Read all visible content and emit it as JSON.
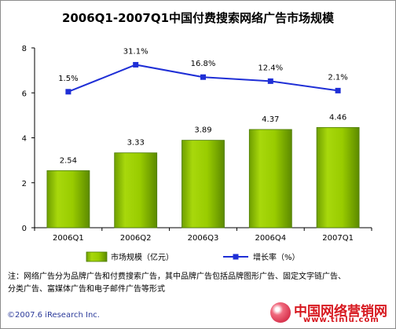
{
  "title": "2006Q1-2007Q1中国付费搜索网络广告市场规模",
  "chart_data": {
    "type": "bar+line",
    "categories": [
      "2006Q1",
      "2006Q2",
      "2006Q3",
      "2006Q4",
      "2007Q1"
    ],
    "series": [
      {
        "name": "市场规模（亿元）",
        "type": "bar",
        "axis": "left",
        "values": [
          2.54,
          3.33,
          3.89,
          4.37,
          4.46
        ],
        "labels": [
          "2.54",
          "3.33",
          "3.89",
          "4.37",
          "4.46"
        ]
      },
      {
        "name": "增长率（%）",
        "type": "line",
        "axis": "left",
        "values": [
          6.05,
          7.25,
          6.7,
          6.52,
          6.1
        ],
        "labels": [
          "1.5%",
          "31.1%",
          "16.8%",
          "12.4%",
          "2.1%"
        ]
      }
    ],
    "yticks": [
      "0",
      "2",
      "4",
      "6",
      "8"
    ],
    "ylim": [
      0,
      8
    ],
    "grid": false,
    "legend": "bottom",
    "colors": {
      "bar": "#99cc00",
      "bar_dark": "#4a7a00",
      "line": "#1f2fd6"
    }
  },
  "note": {
    "line1": "注：网络广告分为品牌广告和付费搜索广告，其中品牌广告包括品牌图形广告、固定文字链广告、",
    "line2": "分类广告、富媒体广告和电子邮件广告等形式"
  },
  "copyright": "©2007.6 iResearch Inc.",
  "brand": {
    "name": "中国网络营销网",
    "url": "www.tinlu.com"
  }
}
